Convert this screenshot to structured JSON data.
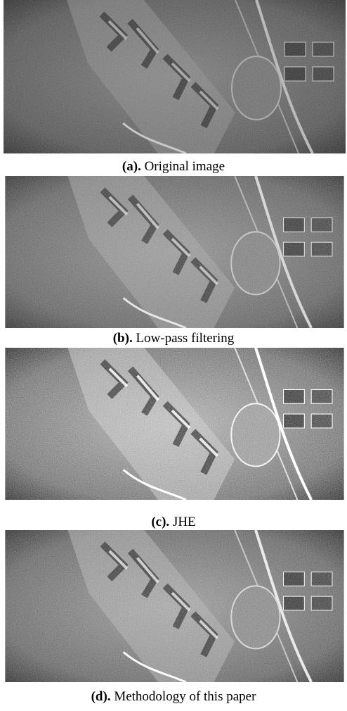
{
  "figures": [
    {
      "label": "(a).",
      "caption": "Original image"
    },
    {
      "label": "(b).",
      "caption": "Low-pass filtering"
    },
    {
      "label": "(c).",
      "caption": "JHE"
    },
    {
      "label": "(d).",
      "caption": "Methodology of this paper"
    }
  ]
}
